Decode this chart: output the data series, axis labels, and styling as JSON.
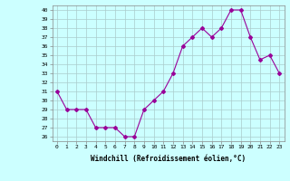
{
  "x": [
    0,
    1,
    2,
    3,
    4,
    5,
    6,
    7,
    8,
    9,
    10,
    11,
    12,
    13,
    14,
    15,
    16,
    17,
    18,
    19,
    20,
    21,
    22,
    23
  ],
  "y": [
    31,
    29,
    29,
    29,
    27,
    27,
    27,
    26,
    26,
    29,
    30,
    31,
    33,
    36,
    37,
    38,
    37,
    38,
    40,
    40,
    37,
    34.5,
    35,
    33
  ],
  "line_color": "#990099",
  "marker": "D",
  "marker_size": 2,
  "bg_color": "#ccffff",
  "grid_color": "#aacccc",
  "xlabel": "Windchill (Refroidissement éolien,°C)",
  "ylim": [
    25.5,
    40.5
  ],
  "xlim": [
    -0.5,
    23.5
  ],
  "yticks": [
    26,
    27,
    28,
    29,
    30,
    31,
    32,
    33,
    34,
    35,
    36,
    37,
    38,
    39,
    40
  ],
  "xtick_labels": [
    "0",
    "1",
    "2",
    "3",
    "4",
    "5",
    "6",
    "7",
    "8",
    "9",
    "10",
    "11",
    "12",
    "13",
    "14",
    "15",
    "16",
    "17",
    "18",
    "19",
    "20",
    "21",
    "22",
    "23"
  ]
}
